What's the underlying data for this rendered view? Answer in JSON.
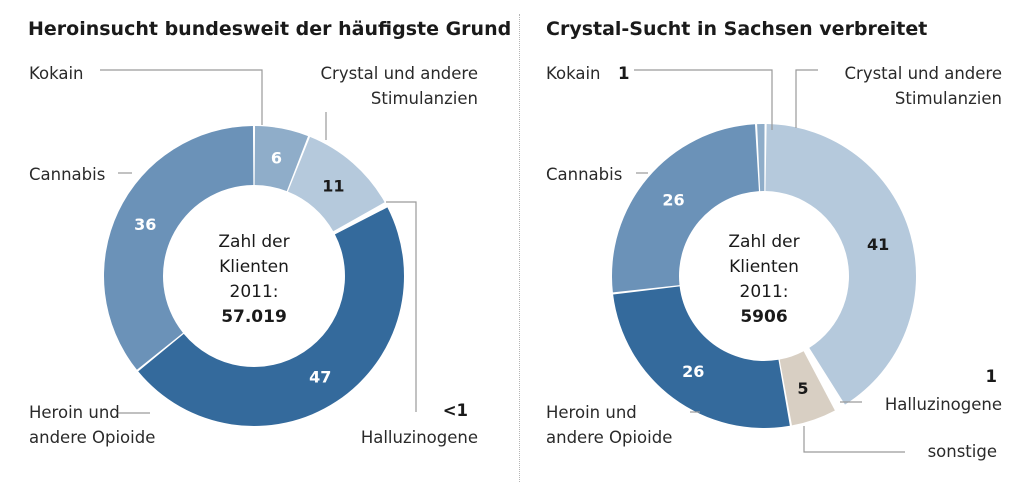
{
  "chart_data": [
    {
      "type": "pie",
      "title": "Heroinsucht bundesweit der häufigste Grund",
      "center": {
        "line1": "Zahl der",
        "line2": "Klienten",
        "line3": "2011:",
        "total": "57.019"
      },
      "slices": [
        {
          "id": "kokain",
          "category": "Kokain",
          "value": 6,
          "label": "6",
          "color": "#8fadc9",
          "label_color": "#ffffff"
        },
        {
          "id": "crystal",
          "category": "Crystal und andere Stimulanzien",
          "value": 11,
          "label": "11",
          "color": "#b5c9dc",
          "label_color": "#1a1a1a"
        },
        {
          "id": "halluzinogene",
          "category": "Halluzinogene",
          "value": 0.4,
          "label": "<1",
          "color": "#ffffff",
          "label_color": "#1a1a1a"
        },
        {
          "id": "heroin",
          "category": "Heroin und andere Opioide",
          "value": 47,
          "label": "47",
          "color": "#346a9c",
          "label_color": "#ffffff"
        },
        {
          "id": "cannabis",
          "category": "Cannabis",
          "value": 36,
          "label": "36",
          "color": "#6b92b8",
          "label_color": "#ffffff"
        }
      ],
      "labels": {
        "kokain": "Kokain",
        "crystal_line1": "Crystal und andere",
        "crystal_line2": "Stimulanzien",
        "cannabis": "Cannabis",
        "heroin_line1": "Heroin und",
        "heroin_line2": "andere Opioide",
        "halluzinogene": "Halluzinogene",
        "halluzinogene_value": "<1"
      }
    },
    {
      "type": "pie",
      "title": "Crystal-Sucht in Sachsen verbreitet",
      "center": {
        "line1": "Zahl der",
        "line2": "Klienten",
        "line3": "2011:",
        "total": "5906"
      },
      "slices": [
        {
          "id": "kokain",
          "category": "Kokain",
          "value": 1,
          "label": "1",
          "color": "#8fadc9",
          "label_color": "#ffffff"
        },
        {
          "id": "crystal",
          "category": "Crystal und andere Stimulanzien",
          "value": 41,
          "label": "41",
          "color": "#b5c9dc",
          "label_color": "#1a1a1a"
        },
        {
          "id": "halluzinogene",
          "category": "Halluzinogene",
          "value": 1,
          "label": "1",
          "color": "#ffffff",
          "label_color": "#1a1a1a"
        },
        {
          "id": "sonstige",
          "category": "sonstige",
          "value": 5,
          "label": "5",
          "color": "#d8cfc3",
          "label_color": "#1a1a1a"
        },
        {
          "id": "heroin",
          "category": "Heroin und andere Opioide",
          "value": 26,
          "label": "26",
          "color": "#346a9c",
          "label_color": "#ffffff"
        },
        {
          "id": "cannabis",
          "category": "Cannabis",
          "value": 26,
          "label": "26",
          "color": "#6b92b8",
          "label_color": "#ffffff"
        }
      ],
      "labels": {
        "kokain": "Kokain",
        "kokain_value": "1",
        "crystal_line1": "Crystal und andere",
        "crystal_line2": "Stimulanzien",
        "cannabis": "Cannabis",
        "heroin_line1": "Heroin und",
        "heroin_line2": "andere Opioide",
        "halluzinogene": "Halluzinogene",
        "halluzinogene_value": "1",
        "sonstige": "sonstige"
      }
    }
  ]
}
